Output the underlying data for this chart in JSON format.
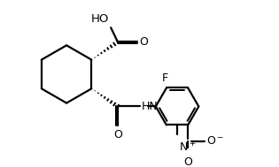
{
  "bg_color": "#ffffff",
  "line_color": "#000000",
  "line_width": 1.6,
  "fig_width": 3.15,
  "fig_height": 1.89,
  "dpi": 100,
  "xlim": [
    0,
    9
  ],
  "ylim": [
    0,
    5.4
  ]
}
